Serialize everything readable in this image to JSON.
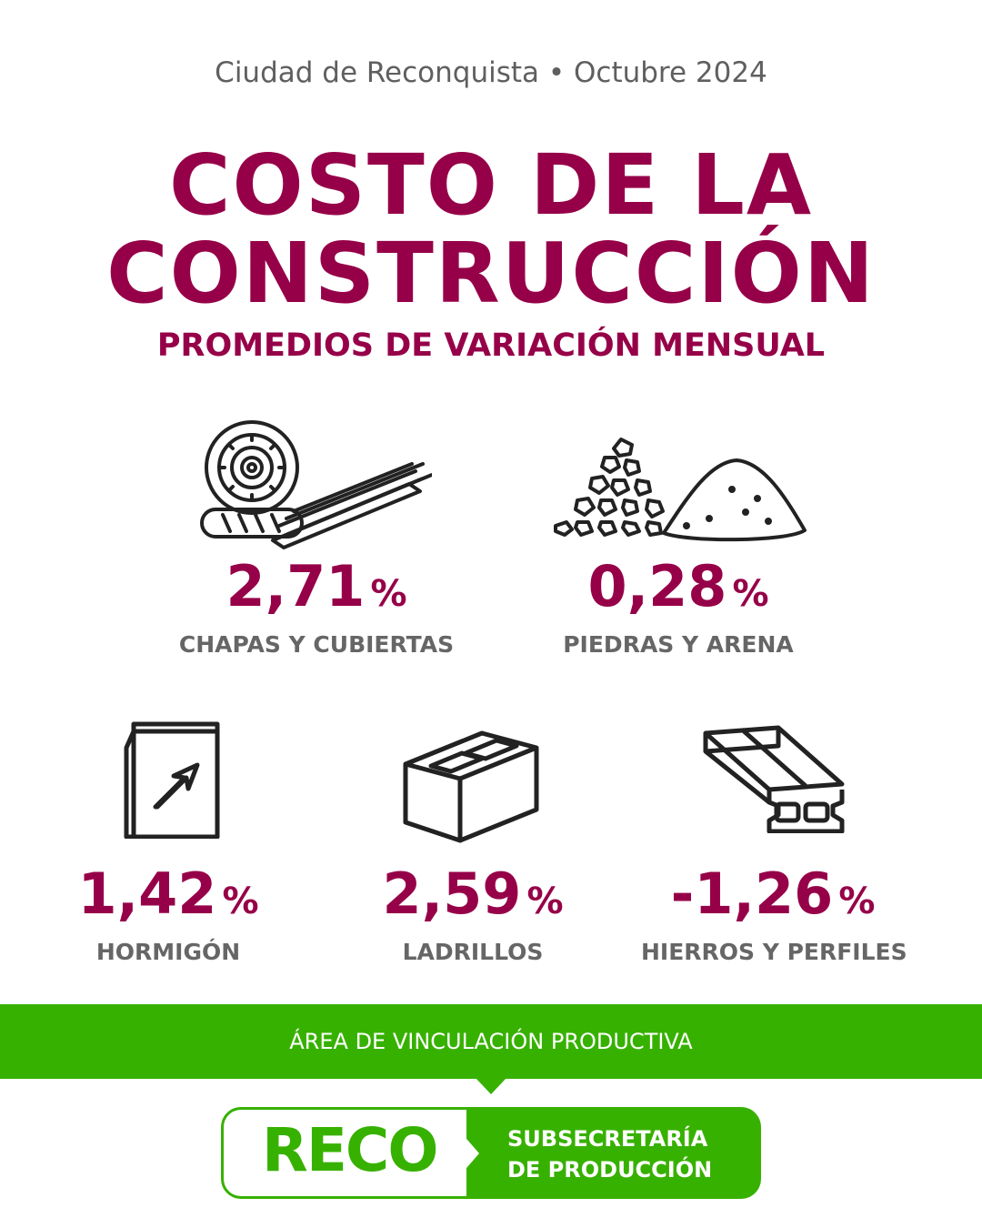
{
  "header": {
    "location_date": "Ciudad de Reconquista • Octubre 2024",
    "title_line1": "COSTO DE LA",
    "title_line2": "CONSTRUCCIÓN",
    "subtitle": "PROMEDIOS DE VARIACIÓN MENSUAL"
  },
  "items": [
    {
      "value": "2,71",
      "unit": "%",
      "label": "CHAPAS Y CUBIERTAS",
      "icon": "corrugated-sheets-icon"
    },
    {
      "value": "0,28",
      "unit": "%",
      "label": "PIEDRAS Y ARENA",
      "icon": "stones-sand-icon"
    },
    {
      "value": "1,42",
      "unit": "%",
      "label": "HORMIGÓN",
      "icon": "cement-bag-icon"
    },
    {
      "value": "2,59",
      "unit": "%",
      "label": "LADRILLOS",
      "icon": "brick-block-icon"
    },
    {
      "value": "-1,26",
      "unit": "%",
      "label": "HIERROS Y PERFILES",
      "icon": "steel-beam-icon"
    }
  ],
  "footer": {
    "banner_text": "ÁREA DE VINCULACIÓN PRODUCTIVA",
    "logo_text": "RECO",
    "sub_line1": "SUBSECRETARÍA",
    "sub_line2": "DE PRODUCCIÓN"
  },
  "colors": {
    "primary": "#960048",
    "green": "#37b100",
    "label_gray": "#666666",
    "text_gray": "#5f5f5f",
    "icon_stroke": "#222222"
  }
}
